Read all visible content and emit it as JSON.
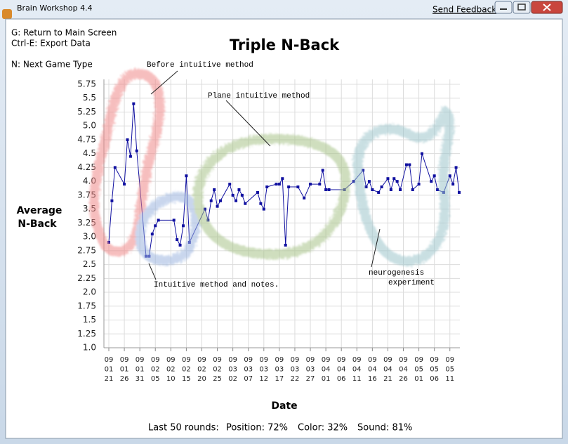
{
  "window": {
    "title": "Brain Workshop 4.4",
    "feedback": "Send Feedback"
  },
  "menu": [
    "G: Return to Main Screen",
    "Ctrl-E: Export Data",
    "N: Next Game Type"
  ],
  "footer": {
    "label": "Last 50 rounds:",
    "items": [
      "Position: 72%",
      "Color: 32%",
      "Sound: 81%"
    ]
  },
  "chart_data": {
    "type": "line",
    "title": "Triple N-Back",
    "x_label": "Date",
    "y_label": [
      "Average",
      "N-Back"
    ],
    "annotations": [
      "Before intuitive method",
      "Plane intuitive method",
      "Intuitive method and notes.",
      "neurogenesis",
      "experiment"
    ],
    "color": "#1010a0",
    "grid": true,
    "x": [
      "09-01-21",
      "09-01-22",
      "09-01-23",
      "09-01-26",
      "09-01-27",
      "09-01-28",
      "09-01-29",
      "09-01-30",
      "09-02-02",
      "09-02-03",
      "09-02-04",
      "09-02-05",
      "09-02-06",
      "09-02-11",
      "09-02-12",
      "09-02-13",
      "09-02-14",
      "09-02-15",
      "09-02-16",
      "09-02-21",
      "09-02-22",
      "09-02-23",
      "09-02-24",
      "09-02-25",
      "09-02-26",
      "09-03-01",
      "09-03-02",
      "09-03-03",
      "09-03-04",
      "09-03-05",
      "09-03-06",
      "09-03-10",
      "09-03-11",
      "09-03-12",
      "09-03-13",
      "09-03-16",
      "09-03-17",
      "09-03-18",
      "09-03-19",
      "09-03-20",
      "09-03-23",
      "09-03-25",
      "09-03-27",
      "09-03-30",
      "09-03-31",
      "09-04-01",
      "09-04-02",
      "09-04-07",
      "09-04-10",
      "09-04-13",
      "09-04-14",
      "09-04-15",
      "09-04-16",
      "09-04-18",
      "09-04-19",
      "09-04-21",
      "09-04-22",
      "09-04-23",
      "09-04-24",
      "09-04-25",
      "09-04-27",
      "09-04-28",
      "09-04-29",
      "09-05-01",
      "09-05-02",
      "09-05-05",
      "09-05-06",
      "09-05-07",
      "09-05-09",
      "09-05-11",
      "09-05-12",
      "09-05-13",
      "09-05-14"
    ],
    "values": [
      2.9,
      3.65,
      4.25,
      3.95,
      4.75,
      4.45,
      5.4,
      4.55,
      2.65,
      2.65,
      3.05,
      3.2,
      3.3,
      3.3,
      2.95,
      2.85,
      3.2,
      4.1,
      2.9,
      3.5,
      3.3,
      3.65,
      3.85,
      3.55,
      3.65,
      3.95,
      3.75,
      3.65,
      3.85,
      3.75,
      3.6,
      3.8,
      3.6,
      3.5,
      3.9,
      3.95,
      3.95,
      4.05,
      2.85,
      3.9,
      3.9,
      3.7,
      3.95,
      3.95,
      4.2,
      3.85,
      3.85,
      3.85,
      4.0,
      4.2,
      3.9,
      4.0,
      3.85,
      3.8,
      3.9,
      4.05,
      3.85,
      4.05,
      4.0,
      3.85,
      4.3,
      4.3,
      3.85,
      3.95,
      4.5,
      4.0,
      4.1,
      3.85,
      3.8,
      4.1,
      3.95,
      4.25,
      3.8
    ],
    "xlim": [
      "09-01-21",
      "09-05-14"
    ],
    "xticks": [
      {
        "value": "09-01-21",
        "label": [
          "09",
          "01",
          "21"
        ]
      },
      {
        "value": "09-01-26",
        "label": [
          "09",
          "01",
          "26"
        ]
      },
      {
        "value": "09-01-31",
        "label": [
          "09",
          "01",
          "31"
        ]
      },
      {
        "value": "09-02-05",
        "label": [
          "09",
          "02",
          "05"
        ]
      },
      {
        "value": "09-02-10",
        "label": [
          "09",
          "02",
          "10"
        ]
      },
      {
        "value": "09-02-15",
        "label": [
          "09",
          "02",
          "15"
        ]
      },
      {
        "value": "09-02-20",
        "label": [
          "09",
          "02",
          "20"
        ]
      },
      {
        "value": "09-02-25",
        "label": [
          "09",
          "02",
          "25"
        ]
      },
      {
        "value": "09-03-02",
        "label": [
          "09",
          "03",
          "02"
        ]
      },
      {
        "value": "09-03-07",
        "label": [
          "09",
          "03",
          "07"
        ]
      },
      {
        "value": "09-03-12",
        "label": [
          "09",
          "03",
          "12"
        ]
      },
      {
        "value": "09-03-17",
        "label": [
          "09",
          "03",
          "17"
        ]
      },
      {
        "value": "09-03-22",
        "label": [
          "09",
          "03",
          "22"
        ]
      },
      {
        "value": "09-03-27",
        "label": [
          "09",
          "03",
          "27"
        ]
      },
      {
        "value": "09-04-01",
        "label": [
          "09",
          "04",
          "01"
        ]
      },
      {
        "value": "09-04-06",
        "label": [
          "09",
          "04",
          "06"
        ]
      },
      {
        "value": "09-04-11",
        "label": [
          "09",
          "04",
          "11"
        ]
      },
      {
        "value": "09-04-16",
        "label": [
          "09",
          "04",
          "16"
        ]
      },
      {
        "value": "09-04-21",
        "label": [
          "09",
          "04",
          "21"
        ]
      },
      {
        "value": "09-04-26",
        "label": [
          "09",
          "04",
          "26"
        ]
      },
      {
        "value": "09-05-01",
        "label": [
          "09",
          "05",
          "01"
        ]
      },
      {
        "value": "09-05-06",
        "label": [
          "09",
          "05",
          "06"
        ]
      },
      {
        "value": "09-05-11",
        "label": [
          "09",
          "05",
          "11"
        ]
      }
    ],
    "ylim": [
      1,
      5.75
    ],
    "yticks": [
      {
        "value": 1,
        "label": "1.0"
      },
      1.25,
      1.5,
      1.75,
      {
        "value": 2,
        "label": "2.0"
      },
      2.25,
      2.5,
      2.75,
      {
        "value": 3,
        "label": "3.0"
      },
      3.25,
      3.5,
      3.75,
      {
        "value": 4,
        "label": "4.0"
      },
      4.25,
      4.5,
      4.75,
      {
        "value": 5,
        "label": "5.0"
      },
      5.25,
      5.5,
      5.75
    ]
  }
}
